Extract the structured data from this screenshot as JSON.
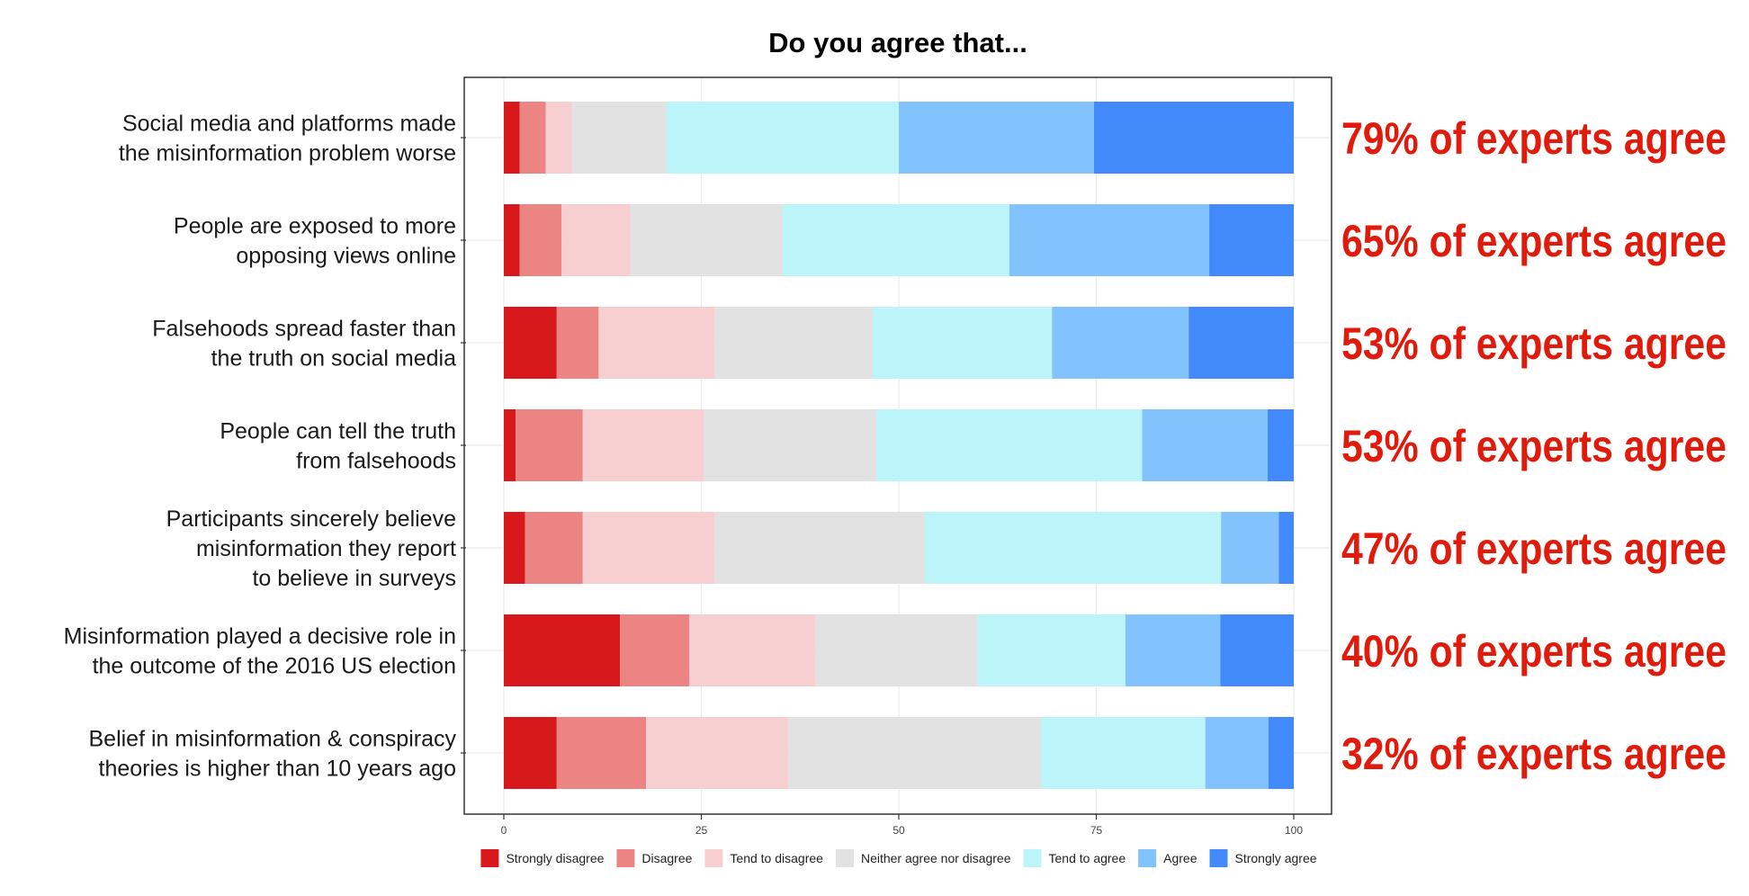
{
  "chart_data": {
    "type": "bar",
    "orientation": "horizontal",
    "stacked": true,
    "title": "Do you agree that...",
    "xlabel": "",
    "ylabel": "",
    "xlim": [
      0,
      100
    ],
    "xticks": [
      0,
      25,
      50,
      75,
      100
    ],
    "grid": true,
    "legend_position": "bottom",
    "categories": [
      [
        "Social media and platforms made",
        "the misinformation problem worse"
      ],
      [
        "People are exposed to more",
        "opposing views online"
      ],
      [
        "Falsehoods spread faster than",
        "the truth on social media"
      ],
      [
        "People can tell the truth",
        "from falsehoods"
      ],
      [
        "Participants sincerely believe",
        "misinformation they report",
        "to believe in surveys"
      ],
      [
        "Misinformation played a decisive role in",
        "the outcome of the 2016 US election"
      ],
      [
        "Belief in misinformation & conspiracy",
        "theories is higher than 10 years ago"
      ]
    ],
    "series": [
      {
        "name": "Strongly disagree",
        "color": "#d7191c",
        "values": [
          2,
          2,
          6.7,
          1.5,
          2.7,
          14.7,
          6.7
        ]
      },
      {
        "name": "Disagree",
        "color": "#ec8483",
        "values": [
          3.3,
          5.3,
          5.3,
          8.5,
          7.3,
          8.8,
          11.3
        ]
      },
      {
        "name": "Tend to disagree",
        "color": "#f8cfd0",
        "values": [
          3.3,
          8.7,
          14.7,
          15.3,
          16.7,
          16,
          18
        ]
      },
      {
        "name": "Neither agree nor disagree",
        "color": "#e2e2e2",
        "values": [
          12,
          19.3,
          20,
          21.9,
          26.6,
          20.5,
          32
        ]
      },
      {
        "name": "Tend to agree",
        "color": "#bbf4f9",
        "values": [
          29.4,
          28.7,
          22.7,
          33.6,
          37.5,
          18.7,
          20.8
        ]
      },
      {
        "name": "Agree",
        "color": "#82c2fd",
        "values": [
          24.7,
          25.3,
          17.3,
          15.9,
          7.3,
          12,
          8
        ]
      },
      {
        "name": "Strongly agree",
        "color": "#428afa",
        "values": [
          25.3,
          10.7,
          13.3,
          3.3,
          1.9,
          9.3,
          3.2
        ]
      }
    ],
    "annotations": [
      "79% of experts agree",
      "65% of experts agree",
      "53% of experts agree",
      "53% of experts agree",
      "47% of experts agree",
      "40% of experts agree",
      "32% of experts agree"
    ],
    "colors": {
      "annotation": "#e01b0c",
      "grid": "#ebebeb",
      "panel_border": "#333333"
    }
  }
}
